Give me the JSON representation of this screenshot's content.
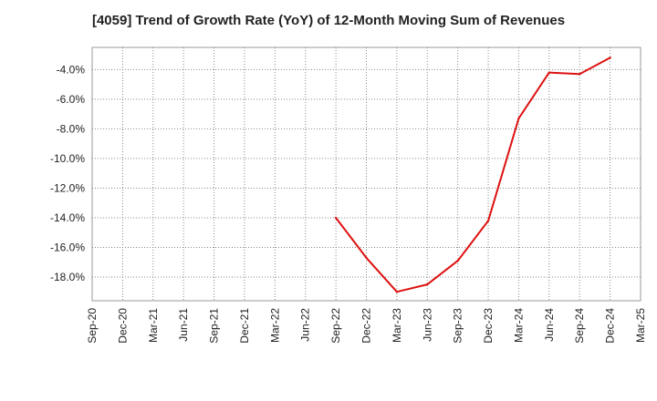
{
  "chart_data": {
    "type": "line",
    "title": "[4059]  Trend of Growth Rate (YoY) of 12-Month Moving Sum of Revenues",
    "xlabel": "",
    "ylabel": "",
    "x_ticks": [
      "Sep-20",
      "Dec-20",
      "Mar-21",
      "Jun-21",
      "Sep-21",
      "Dec-21",
      "Mar-22",
      "Jun-22",
      "Sep-22",
      "Dec-22",
      "Mar-23",
      "Jun-23",
      "Sep-23",
      "Dec-23",
      "Mar-24",
      "Jun-24",
      "Sep-24",
      "Dec-24",
      "Mar-25"
    ],
    "y_ticks": [
      -4.0,
      -6.0,
      -8.0,
      -10.0,
      -12.0,
      -14.0,
      -16.0,
      -18.0
    ],
    "y_tick_labels": [
      "-4.0%",
      "-6.0%",
      "-8.0%",
      "-10.0%",
      "-12.0%",
      "-14.0%",
      "-16.0%",
      "-18.0%"
    ],
    "ylim": [
      -19.6,
      -2.5
    ],
    "grid": true,
    "series": [
      {
        "color": "#dd1111",
        "x": [
          "Sep-22",
          "Dec-22",
          "Mar-23",
          "Jun-23",
          "Sep-23",
          "Dec-23",
          "Mar-24",
          "Jun-24",
          "Sep-24",
          "Dec-24"
        ],
        "values": [
          -14.0,
          -16.7,
          -19.0,
          -18.5,
          -16.9,
          -14.2,
          -7.3,
          -4.2,
          -4.3,
          -3.2
        ]
      }
    ]
  }
}
